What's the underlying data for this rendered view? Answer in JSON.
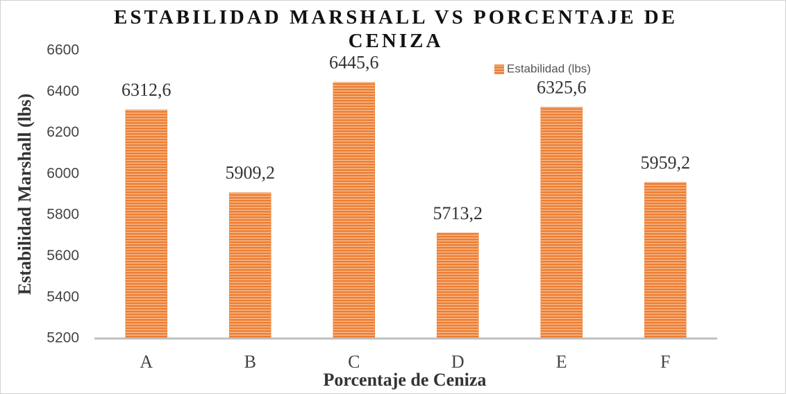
{
  "chart_data": {
    "type": "bar",
    "title": "ESTABILIDAD MARSHALL VS PORCENTAJE DE CENIZA",
    "x_label": "Porcentaje de Ceniza",
    "y_label": "Estabilidad Marshall (lbs)",
    "categories": [
      "A",
      "B",
      "C",
      "D",
      "E",
      "F"
    ],
    "series": [
      {
        "name": "Estabilidad (lbs)",
        "color": "#ed7d31",
        "values": [
          6312.6,
          5909.2,
          6445.6,
          5713.2,
          6325.6,
          5959.2
        ],
        "value_labels": [
          "6312,6",
          "5909,2",
          "6445,6",
          "5713,2",
          "6325,6",
          "5959,2"
        ]
      }
    ],
    "ylim": [
      5200,
      6600
    ],
    "yticks": [
      5200,
      5400,
      5600,
      5800,
      6000,
      6200,
      6400,
      6600
    ],
    "grid": false,
    "legend": "top-right"
  }
}
